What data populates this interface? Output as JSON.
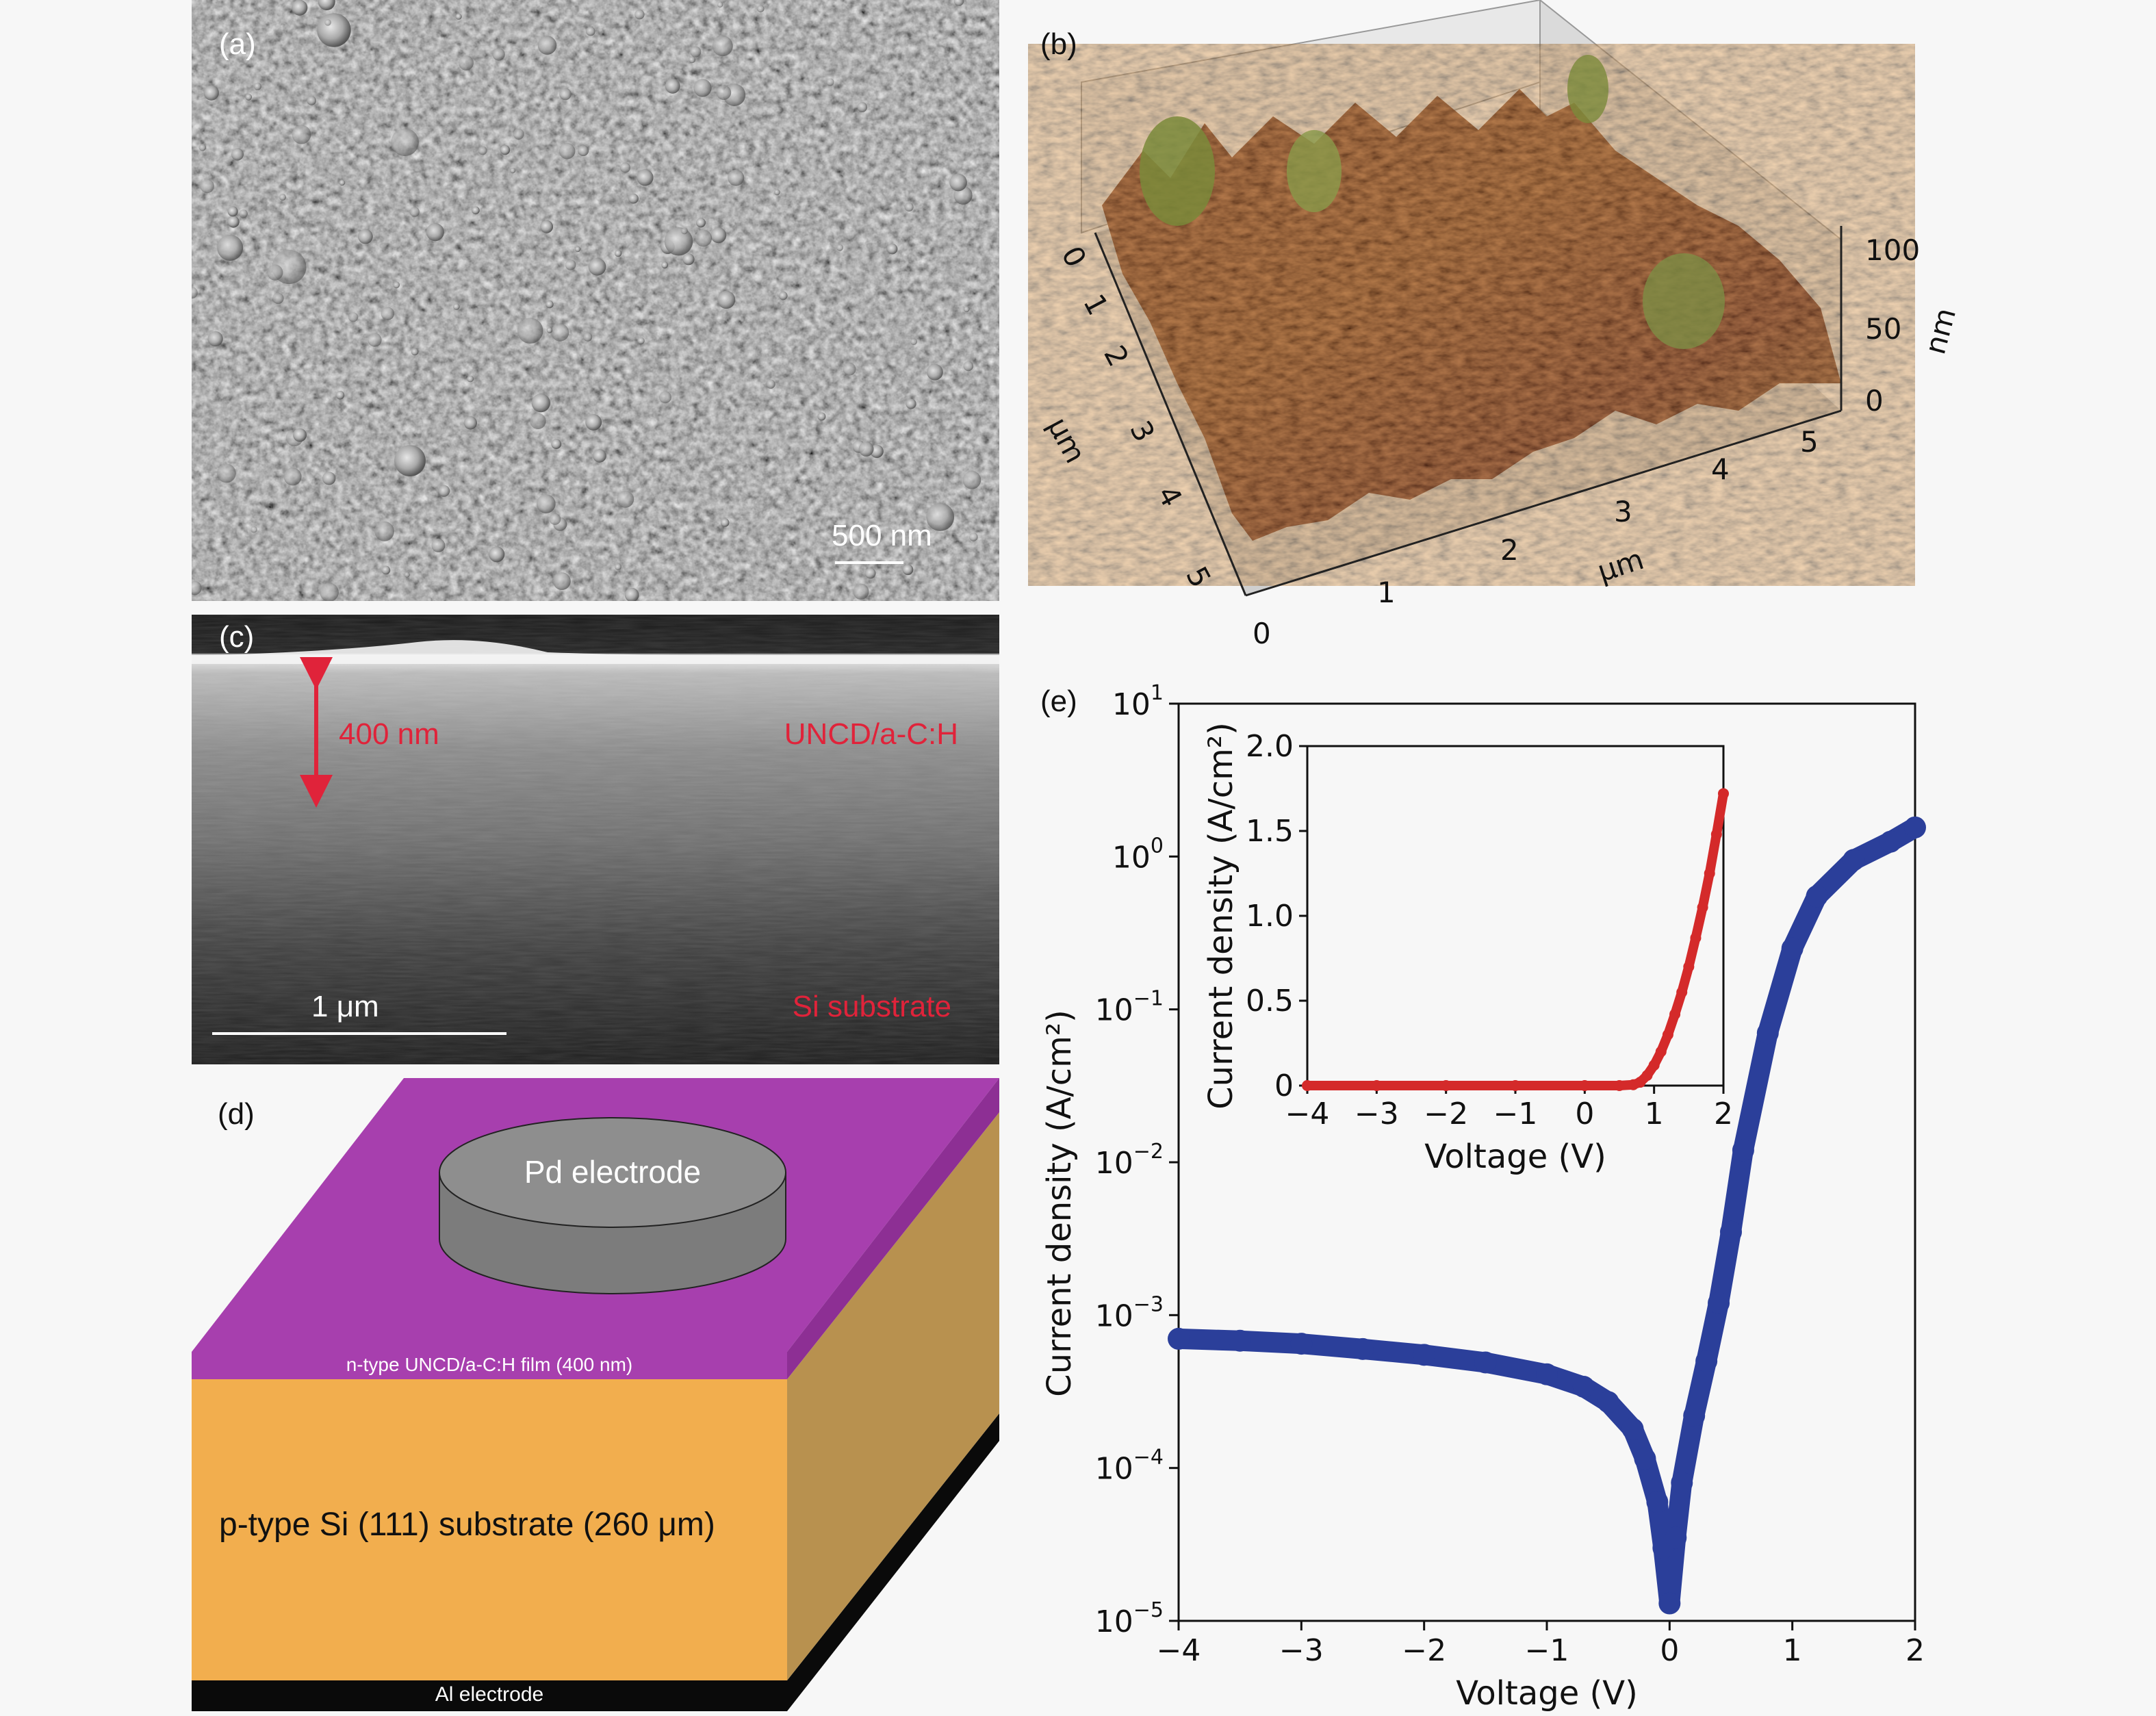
{
  "panels": {
    "a": {
      "label": "(a)",
      "scale_bar": "500 nm"
    },
    "b": {
      "label": "(b)",
      "x_ticks": [
        "0",
        "1",
        "2",
        "3",
        "4",
        "5"
      ],
      "y_ticks": [
        "0",
        "1",
        "2",
        "3",
        "4",
        "5"
      ],
      "z_ticks": [
        "0",
        "50",
        "100"
      ],
      "x_unit": "μm",
      "y_unit": "μm",
      "z_unit": "nm"
    },
    "c": {
      "label": "(c)",
      "thickness": "400 nm",
      "film": "UNCD/a-C:H",
      "substrate": "Si substrate",
      "scale_bar": "1 μm"
    },
    "d": {
      "label": "(d)",
      "top_electrode": "Pd electrode",
      "film": "n-type UNCD/a-C:H film (400 nm)",
      "substrate": "p-type Si (111) substrate (260 μm)",
      "bottom_electrode": "Al electrode"
    },
    "e": {
      "label": "(e)"
    }
  },
  "colors": {
    "main_series": "#2b3f9a",
    "inset_series": "#d42a2a",
    "film": "#a73fae",
    "substrate_front": "#f2ae4e",
    "substrate_side": "#b8914f",
    "electrode": "#8a8a8a",
    "annotation": "#e0233a"
  },
  "chart_data": [
    {
      "type": "scatter",
      "xlabel": "Voltage (V)",
      "ylabel": "Current density (A/cm²)",
      "xlim": [
        -4,
        2
      ],
      "ylim": [
        1e-05,
        10
      ],
      "y_scale": "log",
      "x_ticks": [
        -4,
        -3,
        -2,
        -1,
        0,
        1,
        2
      ],
      "x_tick_labels": [
        "−4",
        "−3",
        "−2",
        "−1",
        "0",
        "1",
        "2"
      ],
      "y_tick_labels": [
        {
          "base": "10",
          "exp": "1"
        },
        {
          "base": "10",
          "exp": "0"
        },
        {
          "base": "10",
          "exp": "−1"
        },
        {
          "base": "10",
          "exp": "−2"
        },
        {
          "base": "10",
          "exp": "−3"
        },
        {
          "base": "10",
          "exp": "−4"
        },
        {
          "base": "10",
          "exp": "−5"
        }
      ],
      "x": [
        -4.0,
        -3.5,
        -3.0,
        -2.5,
        -2.0,
        -1.5,
        -1.0,
        -0.7,
        -0.5,
        -0.3,
        -0.2,
        -0.1,
        -0.05,
        0.0,
        0.05,
        0.1,
        0.2,
        0.3,
        0.4,
        0.5,
        0.6,
        0.8,
        1.0,
        1.2,
        1.5,
        1.8,
        2.0
      ],
      "y": [
        0.0007,
        0.00068,
        0.00065,
        0.0006,
        0.00055,
        0.00049,
        0.00041,
        0.00034,
        0.00027,
        0.00018,
        0.000115,
        6e-05,
        3e-05,
        1.3e-05,
        3.5e-05,
        8e-05,
        0.00022,
        0.0005,
        0.0012,
        0.0035,
        0.012,
        0.07,
        0.25,
        0.55,
        0.95,
        1.25,
        1.55
      ]
    },
    {
      "type": "scatter",
      "xlabel": "Voltage (V)",
      "ylabel": "Current density (A/cm²)",
      "xlim": [
        -4,
        2
      ],
      "ylim": [
        0,
        2.0
      ],
      "x_ticks": [
        -4,
        -3,
        -2,
        -1,
        0,
        1,
        2
      ],
      "x_tick_labels": [
        "−4",
        "−3",
        "−2",
        "−1",
        "0",
        "1",
        "2"
      ],
      "y_ticks": [
        0,
        0.5,
        1.0,
        1.5,
        2.0
      ],
      "y_tick_labels": [
        "0",
        "0.5",
        "1.0",
        "1.5",
        "2.0"
      ],
      "x": [
        -4.0,
        -3.0,
        -2.0,
        -1.0,
        0.0,
        0.5,
        0.7,
        0.8,
        0.9,
        1.0,
        1.1,
        1.2,
        1.3,
        1.4,
        1.5,
        1.6,
        1.7,
        1.8,
        1.9,
        2.0
      ],
      "y": [
        0,
        0,
        0,
        0,
        0,
        0.0,
        0.005,
        0.02,
        0.06,
        0.12,
        0.2,
        0.3,
        0.42,
        0.55,
        0.7,
        0.87,
        1.05,
        1.25,
        1.48,
        1.72
      ]
    }
  ]
}
